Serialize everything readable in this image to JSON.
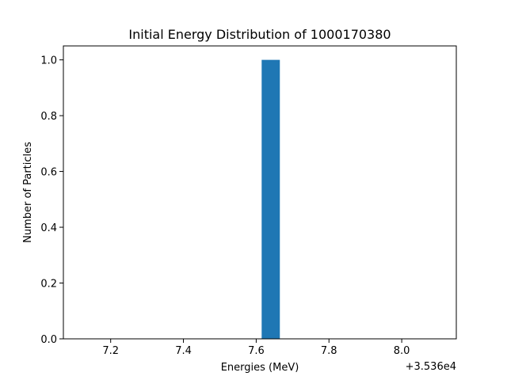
{
  "chart_data": {
    "type": "bar",
    "title": "Initial Energy Distribution of 1000170380",
    "xlabel": "Energies (MeV)",
    "ylabel": "Number of Particles",
    "x_offset_text": "+3.536e4",
    "x_offset_value": 35360,
    "xlim": [
      7.07,
      8.15
    ],
    "ylim": [
      0,
      1.05
    ],
    "x_ticks": [
      7.2,
      7.4,
      7.6,
      7.8,
      8.0
    ],
    "x_tick_labels": [
      "7.2",
      "7.4",
      "7.6",
      "7.8",
      "8.0"
    ],
    "y_ticks": [
      0.0,
      0.2,
      0.4,
      0.6,
      0.8,
      1.0
    ],
    "y_tick_labels": [
      "0.0",
      "0.2",
      "0.4",
      "0.6",
      "0.8",
      "1.0"
    ],
    "bars": [
      {
        "x_start": 7.615,
        "x_end": 7.665,
        "value": 1
      }
    ],
    "bar_color": "#1f77b4",
    "grid": false,
    "legend": "none"
  }
}
